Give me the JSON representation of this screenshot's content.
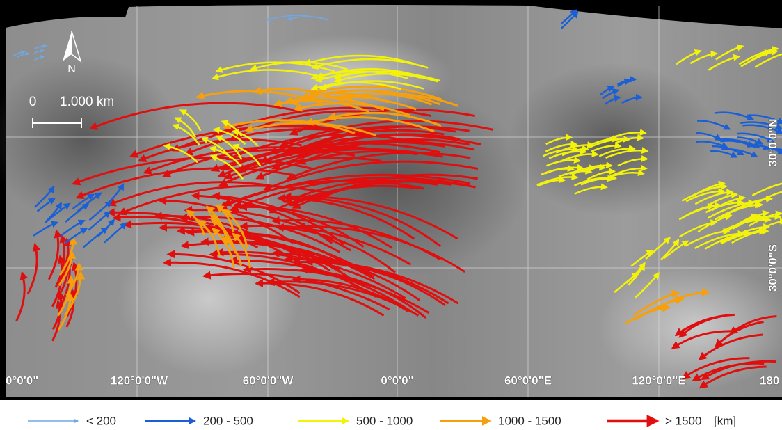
{
  "map": {
    "longitude_labels": [
      "0°0'0\"",
      "120°0'0\"W",
      "60°0'0\"W",
      "0°0'0\"",
      "60°0'0\"E",
      "120°0'0\"E",
      "180"
    ],
    "latitude_labels": [
      "30°0'0\"N",
      "30°0'0\"S"
    ],
    "north_label": "N",
    "scale_bar": {
      "start": "0",
      "end": "1.000 km"
    }
  },
  "legend": {
    "items": [
      {
        "label": "< 200",
        "color": "#6fa8e6"
      },
      {
        "label": "200 - 500",
        "color": "#1a5fd6"
      },
      {
        "label": "500 - 1000",
        "color": "#f2f20a"
      },
      {
        "label": "1000 - 1500",
        "color": "#f5a00c"
      },
      {
        "label": "> 1500",
        "color": "#e00f0f"
      }
    ],
    "unit": "[km]"
  }
}
